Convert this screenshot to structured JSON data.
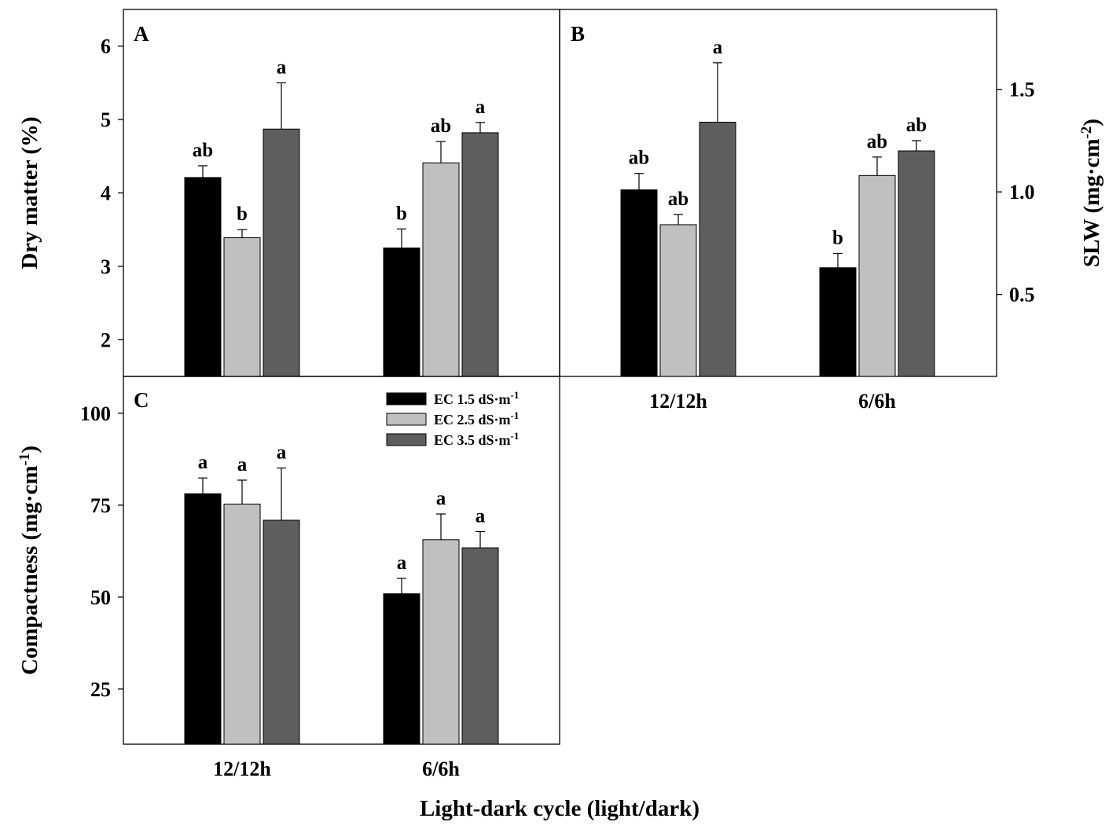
{
  "colors": {
    "ec15": "#000000",
    "ec25": "#c0c0c0",
    "ec35": "#5e5e5e"
  },
  "legend": [
    {
      "label": "EC 1.5 dS·m",
      "sup": "-1",
      "color": "#000000"
    },
    {
      "label": "EC 2.5 dS·m",
      "sup": "-1",
      "color": "#c0c0c0"
    },
    {
      "label": "EC 3.5 dS·m",
      "sup": "-1",
      "color": "#5e5e5e"
    }
  ],
  "xlabel": "Light-dark cycle (light/dark)",
  "chart_data": [
    {
      "panel": "A",
      "type": "bar",
      "ylabel": "Dry matter (%)",
      "ylabel_sup": "",
      "ylabel_tail": "",
      "ylim": [
        1.5,
        6.5
      ],
      "yticks": [
        2,
        3,
        4,
        5,
        6
      ],
      "ytick_labels": [
        "2",
        "3",
        "4",
        "5",
        "6"
      ],
      "categories": [
        "12/12h",
        "6/6h"
      ],
      "show_category_labels": false,
      "series": [
        {
          "name": "EC 1.5 dS·m-1",
          "values": [
            4.21,
            3.25
          ],
          "errors": [
            0.16,
            0.26
          ],
          "letters": [
            "ab",
            "b"
          ]
        },
        {
          "name": "EC 2.5 dS·m-1",
          "values": [
            3.39,
            4.41
          ],
          "errors": [
            0.11,
            0.29
          ],
          "letters": [
            "b",
            "ab"
          ]
        },
        {
          "name": "EC 3.5 dS·m-1",
          "values": [
            4.87,
            4.82
          ],
          "errors": [
            0.63,
            0.14
          ],
          "letters": [
            "a",
            "a"
          ]
        }
      ]
    },
    {
      "panel": "B",
      "type": "bar",
      "ylabel": "SLW (mg·cm",
      "ylabel_sup": "-2",
      "ylabel_tail": ")",
      "ylim": [
        0.1,
        1.89
      ],
      "yticks": [
        0.5,
        1.0,
        1.5
      ],
      "ytick_labels": [
        "0.5",
        "1.0",
        "1.5"
      ],
      "categories": [
        "12/12h",
        "6/6h"
      ],
      "show_category_labels": true,
      "series": [
        {
          "name": "EC 1.5 dS·m-1",
          "values": [
            1.01,
            0.63
          ],
          "errors": [
            0.08,
            0.07
          ],
          "letters": [
            "ab",
            "b"
          ]
        },
        {
          "name": "EC 2.5 dS·m-1",
          "values": [
            0.84,
            1.08
          ],
          "errors": [
            0.05,
            0.09
          ],
          "letters": [
            "ab",
            "ab"
          ]
        },
        {
          "name": "EC 3.5 dS·m-1",
          "values": [
            1.34,
            1.2
          ],
          "errors": [
            0.29,
            0.05
          ],
          "letters": [
            "a",
            "ab"
          ]
        }
      ]
    },
    {
      "panel": "C",
      "type": "bar",
      "ylabel": "Compactness (mg·cm",
      "ylabel_sup": "-1",
      "ylabel_tail": ")",
      "ylim": [
        10,
        110
      ],
      "yticks": [
        25,
        50,
        75,
        100
      ],
      "ytick_labels": [
        "25",
        "50",
        "75",
        "100"
      ],
      "categories": [
        "12/12h",
        "6/6h"
      ],
      "show_category_labels": true,
      "series": [
        {
          "name": "EC 1.5 dS·m-1",
          "values": [
            78.1,
            50.9
          ],
          "errors": [
            4.3,
            4.2
          ],
          "letters": [
            "a",
            "a"
          ]
        },
        {
          "name": "EC 2.5 dS·m-1",
          "values": [
            75.3,
            65.6
          ],
          "errors": [
            6.5,
            7.0
          ],
          "letters": [
            "a",
            "a"
          ]
        },
        {
          "name": "EC 3.5 dS·m-1",
          "values": [
            70.9,
            63.4
          ],
          "errors": [
            14.2,
            4.4
          ],
          "letters": [
            "a",
            "a"
          ]
        }
      ]
    }
  ]
}
